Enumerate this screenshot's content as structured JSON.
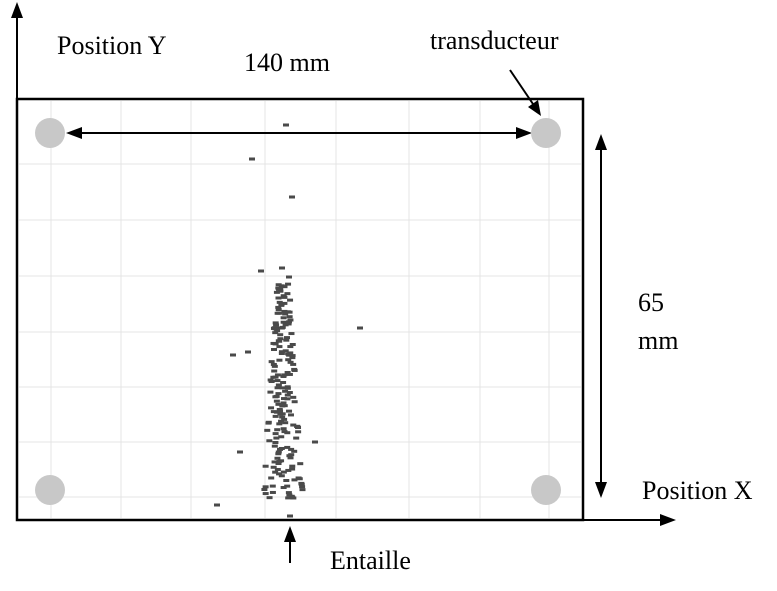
{
  "labels": {
    "position_y": "Position Y",
    "position_x": "Position X",
    "width": "140 mm",
    "height_value": "65",
    "height_unit": "mm",
    "transducer": "transducteur",
    "notch": "Entaille"
  },
  "colors": {
    "frame": "#000000",
    "grid": "#e4e4e4",
    "transducer_fill": "#c8c8c8",
    "event_marker": "#4a4a4a"
  },
  "plate": {
    "width_mm": 140,
    "height_mm": 65,
    "transducer_count": 4
  }
}
